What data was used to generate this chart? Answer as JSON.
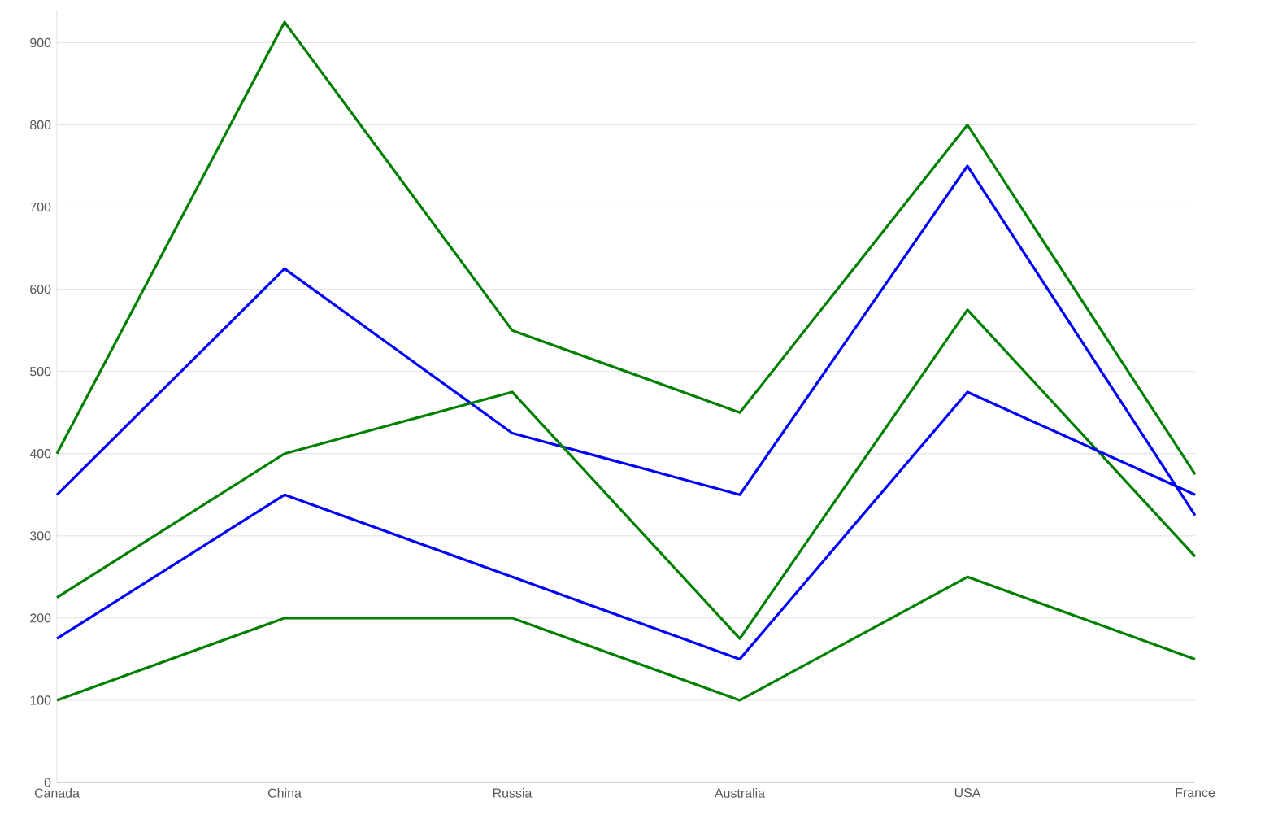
{
  "chart_data": {
    "type": "line",
    "categories": [
      "Canada",
      "China",
      "Russia",
      "Australia",
      "USA",
      "France"
    ],
    "series": [
      {
        "color": "#008000",
        "values": [
          400,
          925,
          550,
          450,
          800,
          375
        ]
      },
      {
        "color": "#0000ff",
        "values": [
          350,
          625,
          425,
          350,
          750,
          325
        ]
      },
      {
        "color": "#008000",
        "values": [
          225,
          400,
          475,
          175,
          575,
          275
        ]
      },
      {
        "color": "#0000ff",
        "values": [
          175,
          350,
          250,
          150,
          475,
          350
        ]
      },
      {
        "color": "#008000",
        "values": [
          100,
          200,
          200,
          100,
          250,
          150
        ]
      }
    ],
    "ylim": [
      0,
      940
    ],
    "yticks": [
      0,
      100,
      200,
      300,
      400,
      500,
      600,
      700,
      800,
      900
    ],
    "grid": "y"
  }
}
